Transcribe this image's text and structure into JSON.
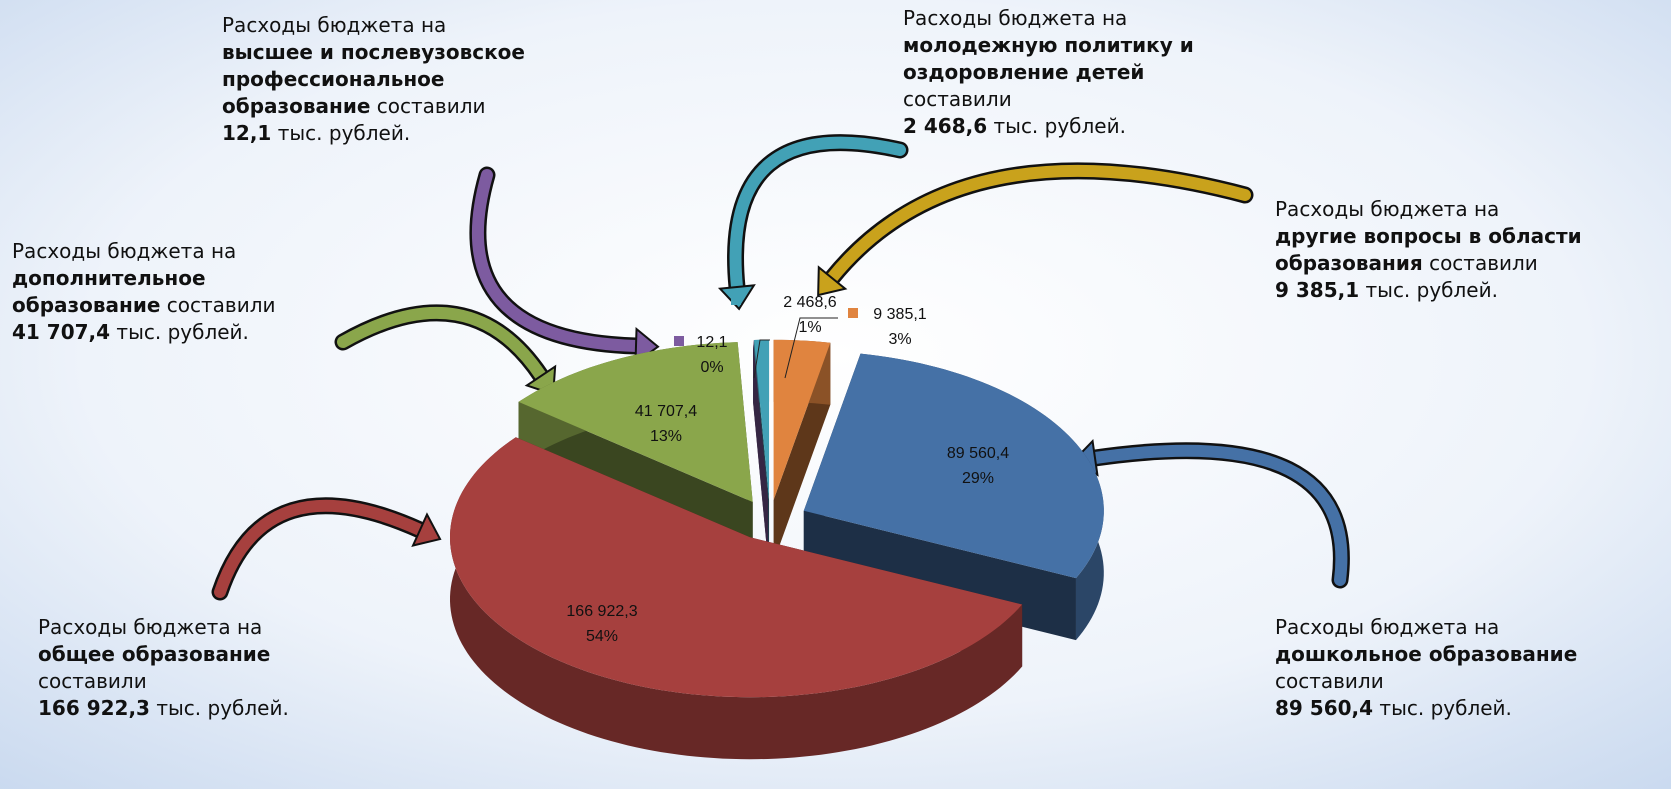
{
  "chart_data": {
    "type": "pie3d",
    "values": [
      9385.1,
      89560.4,
      166922.3,
      41707.4,
      12.1,
      2468.6
    ],
    "value_labels": [
      "9 385,1",
      "89 560,4",
      "166 922,3",
      "41 707,4",
      "12,1",
      "2 468,6"
    ],
    "percent_labels": [
      "3%",
      "29%",
      "54%",
      "13%",
      "0%",
      "1%"
    ],
    "colors": [
      "#e0843f",
      "#4571a6",
      "#a6403e",
      "#8aa64b",
      "#7d5ba0",
      "#42a1b6"
    ],
    "annotations": [
      {
        "lines": [
          [
            {
              "text": "Расходы бюджета на",
              "bold": false
            }
          ],
          [
            {
              "text": "другие вопросы в области",
              "bold": true
            }
          ],
          [
            {
              "text": "образования",
              "bold": true
            },
            {
              "text": " составили",
              "bold": false
            }
          ],
          [
            {
              "text": "9 385,1",
              "bold": true
            },
            {
              "text": " тыс. рублей.",
              "bold": false
            }
          ]
        ]
      },
      {
        "lines": [
          [
            {
              "text": "Расходы бюджета на",
              "bold": false
            }
          ],
          [
            {
              "text": "дошкольное образование",
              "bold": true
            }
          ],
          [
            {
              "text": "составили",
              "bold": false
            }
          ],
          [
            {
              "text": "89 560,4",
              "bold": true
            },
            {
              "text": " тыс. рублей.",
              "bold": false
            }
          ]
        ]
      },
      {
        "lines": [
          [
            {
              "text": "Расходы бюджета на",
              "bold": false
            }
          ],
          [
            {
              "text": "общее образование",
              "bold": true
            }
          ],
          [
            {
              "text": "составили",
              "bold": false
            }
          ],
          [
            {
              "text": "166 922,3",
              "bold": true
            },
            {
              "text": " тыс. рублей.",
              "bold": false
            }
          ]
        ]
      },
      {
        "lines": [
          [
            {
              "text": "Расходы бюджета на",
              "bold": false
            }
          ],
          [
            {
              "text": "дополнительное",
              "bold": true
            }
          ],
          [
            {
              "text": "образование",
              "bold": true
            },
            {
              "text": " составили",
              "bold": false
            }
          ],
          [
            {
              "text": "41 707,4",
              "bold": true
            },
            {
              "text": " тыс. рублей.",
              "bold": false
            }
          ]
        ]
      },
      {
        "lines": [
          [
            {
              "text": "Расходы бюджета на",
              "bold": false
            }
          ],
          [
            {
              "text": "высшее и послевузовское",
              "bold": true
            }
          ],
          [
            {
              "text": "профессиональное",
              "bold": true
            }
          ],
          [
            {
              "text": "образование",
              "bold": true
            },
            {
              "text": " составили",
              "bold": false
            }
          ],
          [
            {
              "text": "12,1",
              "bold": true
            },
            {
              "text": " тыс. рублей.",
              "bold": false
            }
          ]
        ]
      },
      {
        "lines": [
          [
            {
              "text": "Расходы бюджета на",
              "bold": false
            }
          ],
          [
            {
              "text": "молодежную политику и",
              "bold": true
            }
          ],
          [
            {
              "text": "оздоровление детей",
              "bold": true
            }
          ],
          [
            {
              "text": "составили",
              "bold": false
            }
          ],
          [
            {
              "text": "2 468,6",
              "bold": true
            },
            {
              "text": " тыс. рублей.",
              "bold": false
            }
          ]
        ]
      }
    ]
  }
}
